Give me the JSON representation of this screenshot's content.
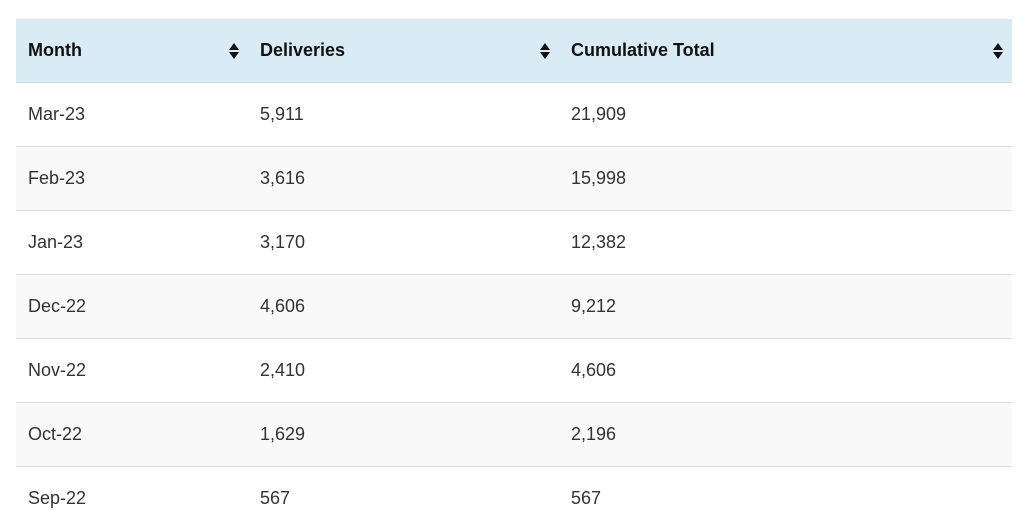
{
  "table": {
    "columns": [
      {
        "label": "Month",
        "sort_icon": "sort-icon"
      },
      {
        "label": "Deliveries",
        "sort_icon": "sort-icon"
      },
      {
        "label": "Cumulative Total",
        "sort_icon": "sort-icon"
      }
    ],
    "rows": [
      [
        "Mar-23",
        "5,911",
        "21,909"
      ],
      [
        "Feb-23",
        "3,616",
        "15,998"
      ],
      [
        "Jan-23",
        "3,170",
        "12,382"
      ],
      [
        "Dec-22",
        "4,606",
        "9,212"
      ],
      [
        "Nov-22",
        "2,410",
        "4,606"
      ],
      [
        "Oct-22",
        "1,629",
        "2,196"
      ],
      [
        "Sep-22",
        "567",
        "567"
      ]
    ]
  },
  "colors": {
    "header_bg": "#d9ecf5",
    "alt_row_bg": "#f9f9f9"
  }
}
